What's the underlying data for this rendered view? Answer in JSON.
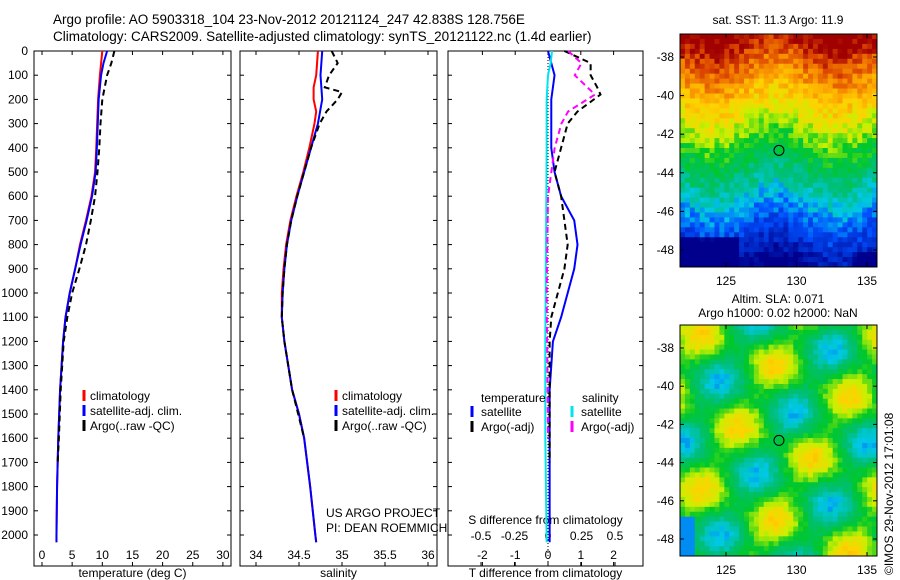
{
  "header": {
    "line1": "Argo profile: AO 5903318_104 23-Nov-2012 20121124_247 42.838S 128.756E",
    "line2": "Climatology: CARS2009. Satellite-adjusted climatology: synTS_20121122.nc (1.4d earlier)"
  },
  "credit": {
    "project": "US ARGO PROJECT",
    "pi": "PI: DEAN ROEMMICH",
    "stamp": "©IMOS 29-Nov-2012 17:01:08"
  },
  "chart_data": [
    {
      "type": "line",
      "xlabel": "temperature (deg C)",
      "xlim": [
        -1.5,
        31
      ],
      "xticks": [
        "0",
        "5",
        "10",
        "15",
        "20",
        "25",
        "30"
      ],
      "ylim": [
        2130,
        0
      ],
      "yticks": [
        "0",
        "100",
        "200",
        "300",
        "400",
        "500",
        "600",
        "700",
        "800",
        "900",
        "1000",
        "1100",
        "1200",
        "1300",
        "1400",
        "1500",
        "1600",
        "1700",
        "1800",
        "1900",
        "2000"
      ],
      "legend": [
        "climatology",
        "satellite-adj. clim.",
        "Argo(..raw -QC)"
      ],
      "series": [
        {
          "name": "climatology",
          "color": "#ff0000",
          "dash": "",
          "depth": [
            0,
            100,
            200,
            400,
            500,
            600,
            700,
            800,
            900,
            1000,
            1100,
            1200,
            1400,
            1600,
            1800,
            2000,
            2030
          ],
          "values": [
            10,
            9.6,
            9.3,
            9.0,
            8.8,
            8.2,
            7.3,
            6.3,
            5.5,
            4.6,
            3.9,
            3.5,
            3.0,
            2.7,
            2.5,
            2.4,
            2.4
          ]
        },
        {
          "name": "satellite-adj. clim.",
          "color": "#0000ff",
          "dash": "",
          "depth": [
            0,
            50,
            100,
            200,
            400,
            500,
            600,
            700,
            800,
            900,
            1000,
            1100,
            1200,
            1400,
            1600,
            1800,
            2000,
            2030
          ],
          "values": [
            10.8,
            10.2,
            9.8,
            9.4,
            9.1,
            8.9,
            8.3,
            7.4,
            6.4,
            5.5,
            4.6,
            3.9,
            3.5,
            3.0,
            2.7,
            2.5,
            2.4,
            2.4
          ]
        },
        {
          "name": "Argo(..raw -QC)",
          "color": "#000000",
          "dash": "6,4",
          "depth": [
            0,
            50,
            100,
            200,
            300,
            400,
            500,
            600,
            700,
            800,
            900,
            1000,
            1100,
            1200,
            1400,
            1600,
            1700
          ],
          "values": [
            12,
            11.5,
            10.8,
            10,
            9.7,
            9.5,
            9.2,
            8.8,
            8.1,
            7.3,
            6.2,
            5.0,
            4.2,
            3.6,
            3.1,
            2.8,
            2.6
          ]
        }
      ]
    },
    {
      "type": "line",
      "xlabel": "salinity",
      "xlim": [
        33.8,
        36.1
      ],
      "xticks": [
        "34",
        "34.5",
        "35",
        "35.5",
        "36"
      ],
      "ylim": [
        2130,
        0
      ],
      "legend": [
        "climatology",
        "satellite-adj. clim.",
        "Argo(..raw -QC)"
      ],
      "series": [
        {
          "name": "climatology",
          "color": "#ff0000",
          "dash": "",
          "depth": [
            0,
            100,
            150,
            200,
            250,
            300,
            400,
            500,
            600,
            700,
            800,
            900,
            1000,
            1100,
            1200,
            1400,
            1500,
            1600,
            1800,
            2000,
            2030
          ],
          "values": [
            34.72,
            34.7,
            34.67,
            34.67,
            34.7,
            34.68,
            34.62,
            34.55,
            34.47,
            34.4,
            34.35,
            34.32,
            34.3,
            34.3,
            34.33,
            34.42,
            34.5,
            34.56,
            34.63,
            34.69,
            34.7
          ]
        },
        {
          "name": "satellite-adj. clim.",
          "color": "#0000ff",
          "dash": "",
          "depth": [
            0,
            100,
            200,
            300,
            400,
            500,
            600,
            700,
            800,
            900,
            1000,
            1100,
            1200,
            1400,
            1500,
            1600,
            1800,
            2000,
            2030
          ],
          "values": [
            34.77,
            34.75,
            34.77,
            34.72,
            34.64,
            34.56,
            34.48,
            34.41,
            34.36,
            34.33,
            34.31,
            34.3,
            34.33,
            34.42,
            34.5,
            34.56,
            34.63,
            34.69,
            34.7
          ]
        },
        {
          "name": "Argo(..raw -QC)",
          "color": "#000000",
          "dash": "6,4",
          "depth": [
            0,
            50,
            100,
            150,
            170,
            200,
            250,
            300,
            400,
            500,
            600,
            700,
            800,
            900,
            1000,
            1100,
            1200,
            1400,
            1600
          ],
          "values": [
            34.88,
            34.95,
            34.85,
            34.8,
            35.0,
            34.95,
            34.82,
            34.74,
            34.64,
            34.56,
            34.48,
            34.41,
            34.36,
            34.33,
            34.31,
            34.3,
            34.33,
            34.42,
            34.56
          ]
        }
      ]
    },
    {
      "type": "line",
      "xlabel": "T difference from climatology",
      "x2label": "S difference from climatology",
      "xlim": [
        -2.9,
        2.9
      ],
      "xticks": [
        "-2",
        "-1",
        "0",
        "1",
        "2"
      ],
      "x2ticks": [
        "-0.5",
        "-0.25",
        "0",
        "0.25",
        "0.5"
      ],
      "ylim": [
        2130,
        0
      ],
      "legend_titles": [
        "temperature",
        "salinity"
      ],
      "legend": [
        "satellite",
        "Argo(-adj)",
        "satellite",
        "Argo(-adj)"
      ],
      "series": [
        {
          "name": "T satellite",
          "color": "#0000ff",
          "dash": "",
          "scale": "T",
          "depth": [
            0,
            50,
            100,
            200,
            300,
            400,
            500,
            600,
            700,
            800,
            900,
            1000,
            1100,
            1200,
            1400,
            2000,
            2030
          ],
          "values": [
            0,
            0.1,
            0.2,
            0.1,
            0.1,
            0.1,
            0.2,
            0.4,
            0.8,
            0.9,
            0.8,
            0.6,
            0.4,
            0.15,
            0.05,
            0.05,
            0.05
          ]
        },
        {
          "name": "T Argo(-adj)",
          "color": "#000000",
          "dash": "6,4",
          "scale": "T",
          "depth": [
            0,
            50,
            100,
            150,
            180,
            250,
            300,
            400,
            500,
            600,
            700,
            800,
            900,
            1000,
            1100,
            1200,
            1600,
            1700
          ],
          "values": [
            0.5,
            1.3,
            1.3,
            1.5,
            1.6,
            0.9,
            0.6,
            0.4,
            0.2,
            0.4,
            0.5,
            0.6,
            0.5,
            0.3,
            0.1,
            0.05,
            0.05,
            0.05
          ]
        },
        {
          "name": "S satellite",
          "color": "#00e5ee",
          "dash": "",
          "scale": "S",
          "depth": [
            0,
            50,
            100,
            200,
            400,
            800,
            1200,
            1600,
            2030
          ],
          "values": [
            0.03,
            0.02,
            0.0,
            -0.01,
            -0.01,
            -0.015,
            -0.02,
            -0.02,
            -0.01
          ]
        },
        {
          "name": "S Argo(-adj)",
          "color": "#ff00ff",
          "dash": "6,4",
          "scale": "S",
          "depth": [
            0,
            50,
            100,
            180,
            250,
            300,
            400,
            600,
            1000,
            1600
          ],
          "values": [
            0.15,
            0.25,
            0.2,
            0.35,
            0.15,
            0.1,
            0.05,
            0.0,
            -0.01,
            0.0
          ]
        }
      ]
    },
    {
      "type": "heatmap",
      "title": "sat. SST: 11.3 Argo: 11.9",
      "xticks": [
        "125",
        "130",
        "135"
      ],
      "yticks": [
        "-38",
        "-40",
        "-42",
        "-44",
        "-46",
        "-48"
      ],
      "argo_lon": 128.756,
      "argo_lat": -42.838
    },
    {
      "type": "heatmap",
      "title1": "Altim. SLA: 0.071",
      "title2": "Argo h1000: 0.02 h2000: NaN",
      "xticks": [
        "125",
        "130",
        "135"
      ],
      "yticks": [
        "-38",
        "-40",
        "-42",
        "-44",
        "-46",
        "-48"
      ],
      "argo_lon": 128.756,
      "argo_lat": -42.838
    }
  ]
}
